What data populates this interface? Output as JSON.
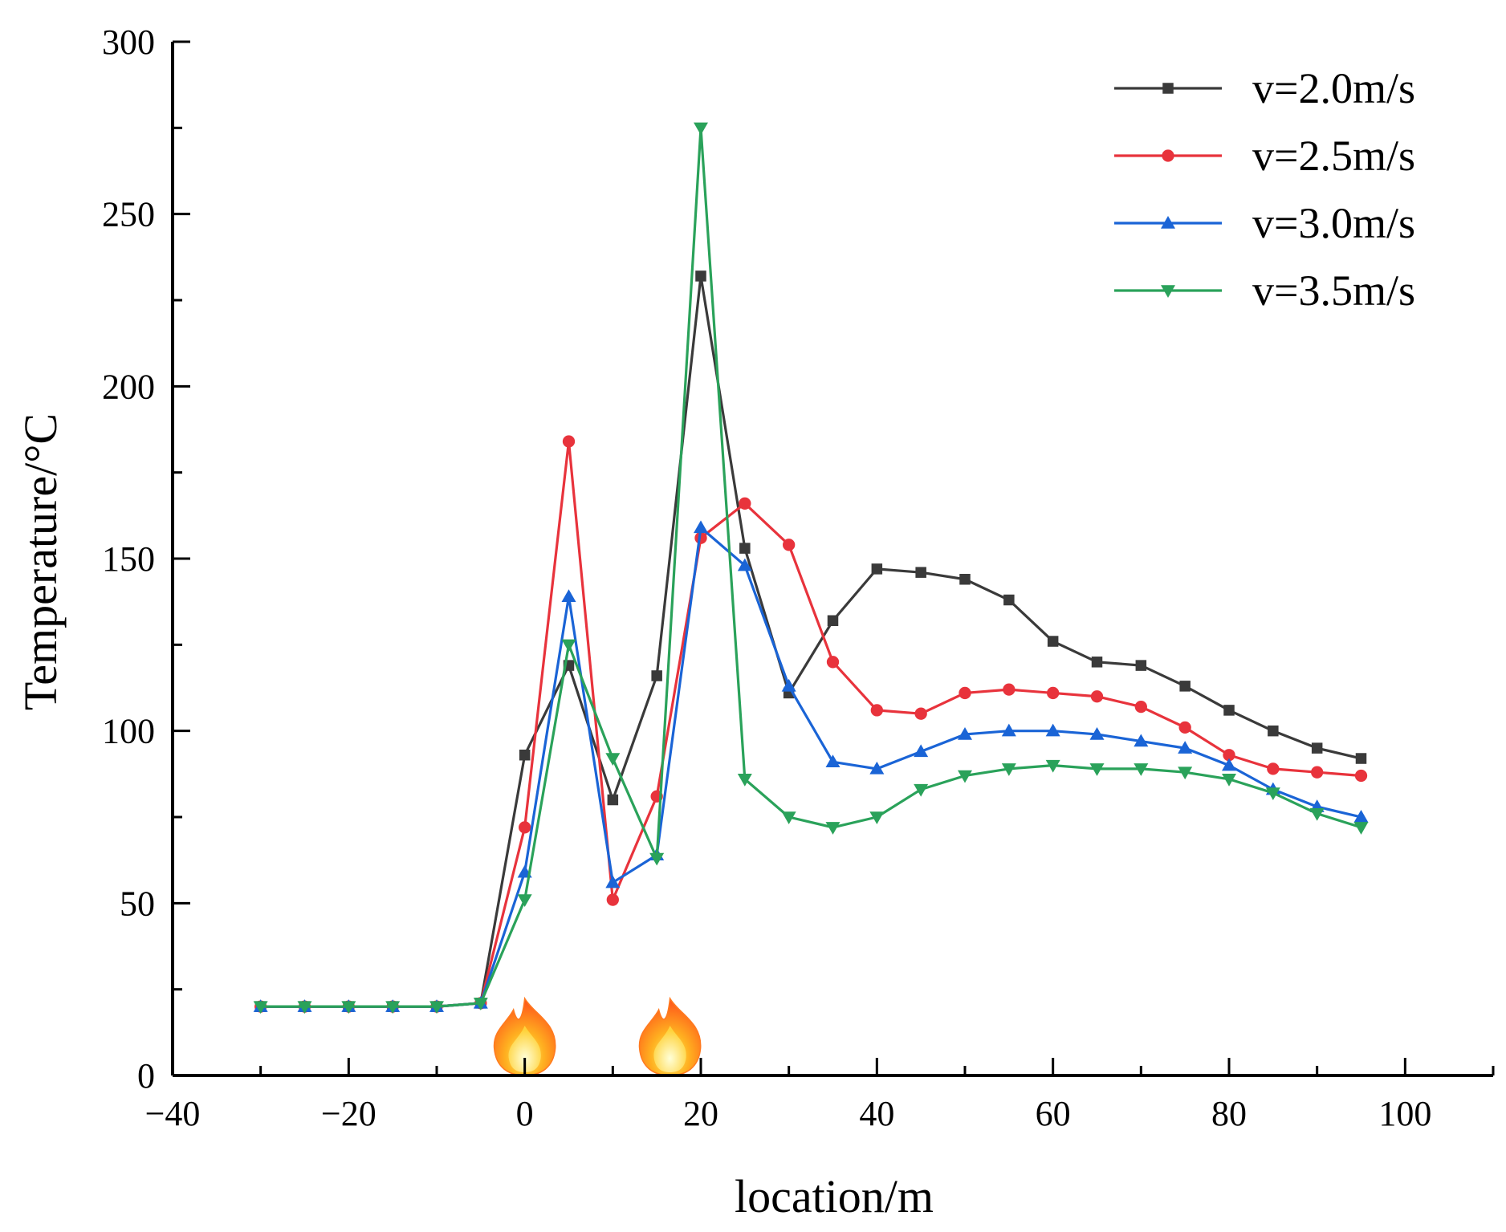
{
  "chart_data": {
    "type": "line",
    "title": "",
    "xlabel": "location/m",
    "ylabel": "Temperature/°C",
    "xlim": [
      -40,
      110
    ],
    "ylim": [
      0,
      300
    ],
    "xticks": [
      -40,
      -20,
      0,
      20,
      40,
      60,
      80,
      100
    ],
    "xtick_labels": [
      "−40",
      "−20",
      "0",
      "20",
      "40",
      "60",
      "80",
      "100"
    ],
    "yticks": [
      0,
      50,
      100,
      150,
      200,
      250,
      300
    ],
    "ytick_labels": [
      "0",
      "50",
      "100",
      "150",
      "200",
      "250",
      "300"
    ],
    "grid": false,
    "legend_position": "top-right",
    "x": [
      -30,
      -25,
      -20,
      -15,
      -10,
      -5,
      0,
      5,
      10,
      15,
      20,
      25,
      30,
      35,
      40,
      45,
      50,
      55,
      60,
      65,
      70,
      75,
      80,
      85,
      90,
      95
    ],
    "series": [
      {
        "name": "v=2.0m/s",
        "color": "#3a3a3a",
        "marker": "square",
        "values": [
          20,
          20,
          20,
          20,
          20,
          21,
          93,
          119,
          80,
          116,
          232,
          153,
          111,
          132,
          147,
          146,
          144,
          138,
          126,
          120,
          119,
          113,
          106,
          100,
          95,
          92
        ]
      },
      {
        "name": "v=2.5m/s",
        "color": "#e8333c",
        "marker": "circle",
        "values": [
          20,
          20,
          20,
          20,
          20,
          21,
          72,
          184,
          51,
          81,
          156,
          166,
          154,
          120,
          106,
          105,
          111,
          112,
          111,
          110,
          107,
          101,
          93,
          89,
          88,
          87
        ]
      },
      {
        "name": "v=3.0m/s",
        "color": "#1a64d6",
        "marker": "triangle-up",
        "values": [
          20,
          20,
          20,
          20,
          20,
          21,
          59,
          139,
          56,
          64,
          159,
          148,
          113,
          91,
          89,
          94,
          99,
          100,
          100,
          99,
          97,
          95,
          90,
          83,
          78,
          75
        ]
      },
      {
        "name": "v=3.5m/s",
        "color": "#2aa25a",
        "marker": "triangle-down",
        "values": [
          20,
          20,
          20,
          20,
          20,
          21,
          51,
          125,
          92,
          63,
          275,
          86,
          75,
          72,
          75,
          83,
          87,
          89,
          90,
          89,
          89,
          88,
          86,
          82,
          76,
          72
        ]
      }
    ],
    "annotations": [
      {
        "type": "fire-icon",
        "x": 0
      },
      {
        "type": "fire-icon",
        "x": 16.5
      }
    ]
  }
}
